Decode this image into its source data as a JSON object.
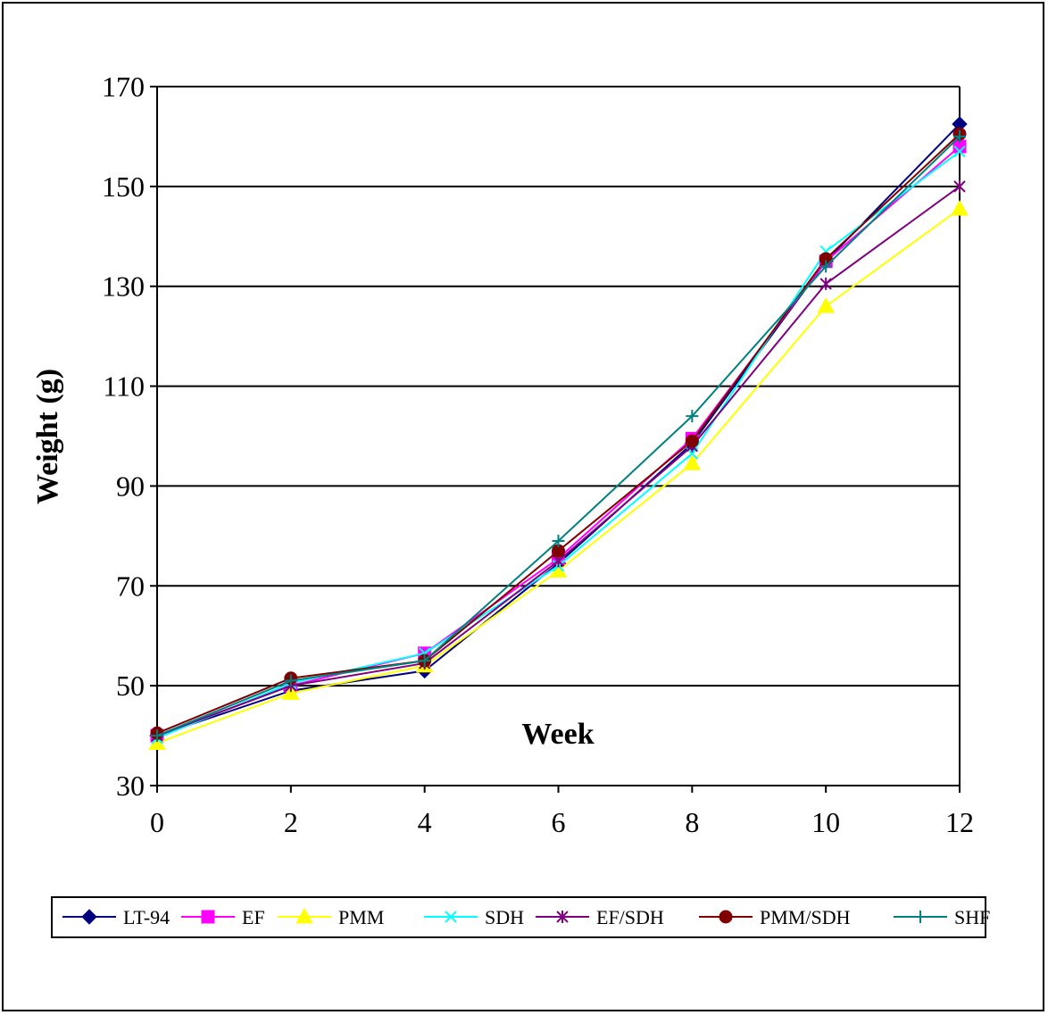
{
  "chart_data": {
    "type": "line",
    "xlabel": "Week",
    "ylabel": "Weight (g)",
    "x": [
      0,
      2,
      4,
      6,
      8,
      10,
      12
    ],
    "xlim": [
      0,
      12
    ],
    "ylim": [
      30,
      170
    ],
    "x_ticks": [
      "0",
      "2",
      "4",
      "6",
      "8",
      "10",
      "12"
    ],
    "y_ticks": [
      "30",
      "50",
      "70",
      "90",
      "110",
      "130",
      "150",
      "170"
    ],
    "grid": "horizontal",
    "legend_position": "bottom",
    "series": [
      {
        "name": "LT-94",
        "color": "#000080",
        "marker": "diamond",
        "values": [
          40,
          49,
          53,
          74.5,
          98.5,
          135,
          162.5
        ]
      },
      {
        "name": "EF",
        "color": "#FF00FF",
        "marker": "square",
        "values": [
          40,
          50,
          56.5,
          75.5,
          99.5,
          135,
          158
        ]
      },
      {
        "name": "PMM",
        "color": "#FFFF00",
        "marker": "triangle",
        "values": [
          38.5,
          48.5,
          54,
          73,
          94.5,
          126,
          145.5
        ]
      },
      {
        "name": "SDH",
        "color": "#00FFFF",
        "marker": "x",
        "values": [
          39.5,
          50.5,
          56.5,
          74,
          96.5,
          137,
          157
        ]
      },
      {
        "name": "EF/SDH",
        "color": "#800080",
        "marker": "star",
        "values": [
          40,
          50,
          54.5,
          75,
          98,
          130.5,
          150
        ]
      },
      {
        "name": "PMM/SDH",
        "color": "#800000",
        "marker": "circle",
        "values": [
          40.5,
          51.5,
          55,
          77,
          99,
          135.5,
          160.5
        ]
      },
      {
        "name": "SHF",
        "color": "#008080",
        "marker": "plus",
        "values": [
          40,
          51,
          55,
          79,
          104,
          134,
          160
        ]
      }
    ]
  }
}
